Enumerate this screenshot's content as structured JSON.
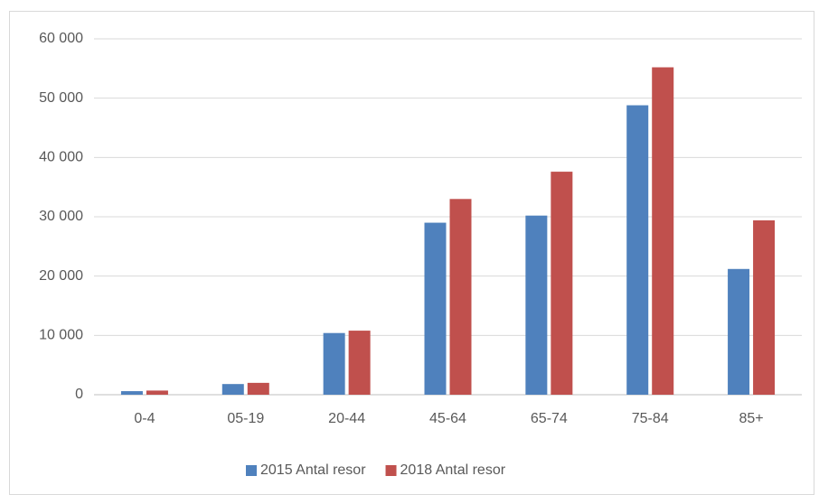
{
  "chart_data": {
    "type": "bar",
    "categories": [
      "0-4",
      "05-19",
      "20-44",
      "45-64",
      "65-74",
      "75-84",
      "85+"
    ],
    "series": [
      {
        "name": "2015 Antal resor",
        "color": "#4f81bd",
        "values": [
          600,
          1800,
          10400,
          29000,
          30200,
          48800,
          21200
        ]
      },
      {
        "name": "2018 Antal resor",
        "color": "#c0504d",
        "values": [
          700,
          2000,
          10800,
          33000,
          37600,
          55200,
          29400
        ]
      }
    ],
    "ylim": [
      0,
      60000
    ],
    "yticks": [
      0,
      {
        "value": 10000,
        "label": "10 000"
      },
      {
        "value": 20000,
        "label": "20 000"
      },
      {
        "value": 30000,
        "label": "30 000"
      },
      {
        "value": 40000,
        "label": "40 000"
      },
      {
        "value": 50000,
        "label": "50 000"
      },
      {
        "value": 60000,
        "label": "60 000"
      }
    ],
    "grid": true,
    "legend": "bottom"
  }
}
